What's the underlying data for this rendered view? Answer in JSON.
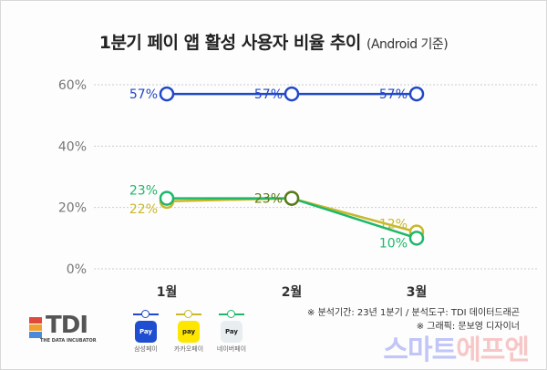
{
  "title": {
    "main": "1분기 페이 앱 활성 사용자 비율 추이",
    "sub": "(Android 기준)"
  },
  "chart_data": {
    "type": "line",
    "title": "1분기 페이 앱 활성 사용자 비율 추이 (Android 기준)",
    "categories": [
      "1월",
      "2월",
      "3월"
    ],
    "yticks": [
      "0%",
      "20%",
      "40%",
      "60%"
    ],
    "ylim": [
      0,
      60
    ],
    "grid": true,
    "legend_position": "bottom",
    "series": [
      {
        "name": "삼성페이",
        "color": "#2048c8",
        "values": [
          57,
          57,
          57
        ],
        "labels": [
          "57%",
          "57%",
          "57%"
        ]
      },
      {
        "name": "카카오페이",
        "color": "#c9b82a",
        "values": [
          22,
          23,
          12
        ],
        "labels": [
          "22%",
          "",
          "12%"
        ]
      },
      {
        "name": "네이버페이",
        "color": "#1cb86a",
        "values": [
          23,
          23,
          10
        ],
        "labels": [
          "23%",
          "23%",
          "10%"
        ]
      }
    ]
  },
  "logo": {
    "text": "TDI",
    "tagline": "THE DATA INCUBATOR"
  },
  "legend": [
    {
      "name": "삼성페이",
      "icon": "Pay",
      "color": "#2048c8",
      "bg": "#1f4fd0",
      "fg": "#ffffff"
    },
    {
      "name": "카카오페이",
      "icon": "pay",
      "color": "#c9b82a",
      "bg": "#ffe600",
      "fg": "#222222"
    },
    {
      "name": "네이버페이",
      "icon": "Pay",
      "color": "#1cb86a",
      "bg": "#e8eef0",
      "fg": "#222222"
    }
  ],
  "notes": [
    "※ 분석기간: 23년 1분기 / 분석도구: TDI 데이터드래곤",
    "※ 그래픽: 문보영 디자이너"
  ],
  "watermark": {
    "part1": "스마트",
    "part2": "에프엔"
  }
}
